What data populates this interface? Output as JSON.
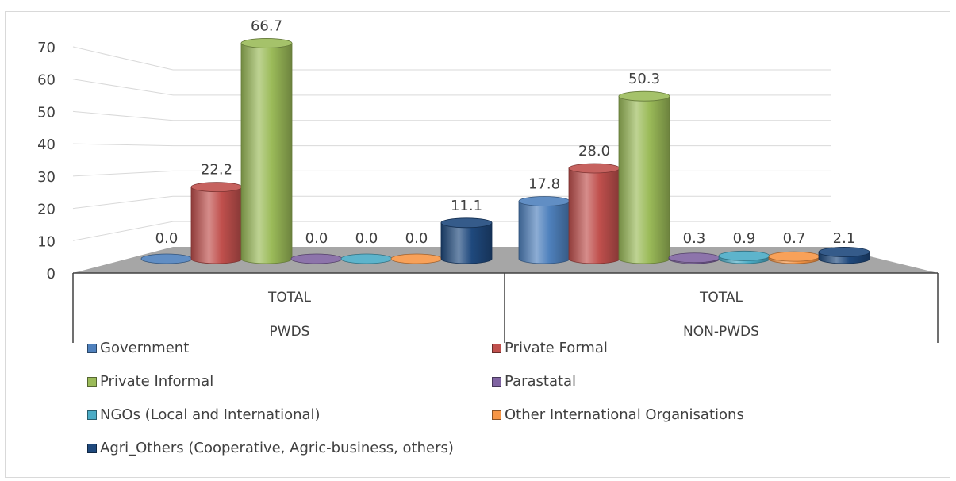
{
  "chart_data": {
    "type": "bar",
    "style": "3d-cylinder",
    "ylim": [
      0,
      70
    ],
    "yticks": [
      0,
      10,
      20,
      30,
      40,
      50,
      60,
      70
    ],
    "grid": true,
    "legend_position": "bottom",
    "groups": [
      {
        "outer_label": "PWDS",
        "inner_label": "TOTAL"
      },
      {
        "outer_label": "NON-PWDS",
        "inner_label": "TOTAL"
      }
    ],
    "series": [
      {
        "name": "Government",
        "color": "#4f81bd",
        "values": [
          0.0,
          17.8
        ],
        "labels": [
          "0.0",
          "17.8"
        ]
      },
      {
        "name": "Private Formal",
        "color": "#c0504d",
        "values": [
          22.2,
          28.0
        ],
        "labels": [
          "22.2",
          "28.0"
        ]
      },
      {
        "name": "Private Informal",
        "color": "#9bbb59",
        "values": [
          66.7,
          50.3
        ],
        "labels": [
          "66.7",
          "50.3"
        ]
      },
      {
        "name": "Parastatal",
        "color": "#8064a2",
        "values": [
          0.0,
          0.3
        ],
        "labels": [
          "0.0",
          "0.3"
        ]
      },
      {
        "name": "NGOs (Local and International)",
        "color": "#4bacc6",
        "values": [
          0.0,
          0.9
        ],
        "labels": [
          "0.0",
          "0.9"
        ]
      },
      {
        "name": "Other International Organisations",
        "color": "#f79646",
        "values": [
          0.0,
          0.7
        ],
        "labels": [
          "0.0",
          "0.7"
        ]
      },
      {
        "name": "Agri_Others (Cooperative, Agric-business, others)",
        "color": "#1f497d",
        "values": [
          11.1,
          2.1
        ],
        "labels": [
          "11.1",
          "2.1"
        ]
      }
    ]
  }
}
